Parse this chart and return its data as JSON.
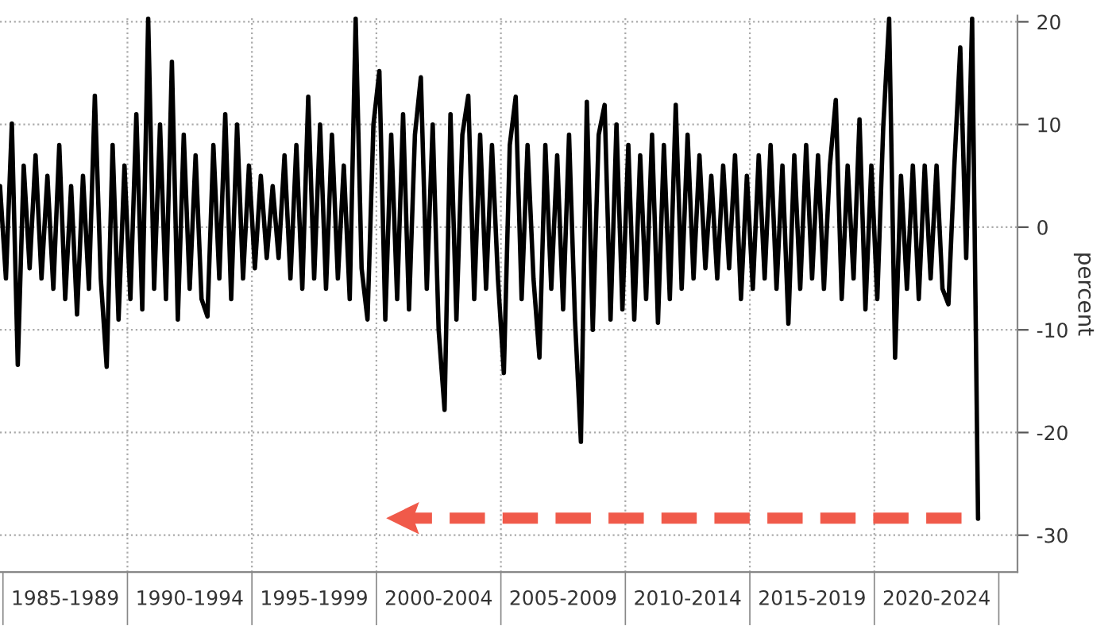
{
  "chart_data": {
    "type": "line",
    "ylabel": "percent",
    "categories": [
      null,
      null,
      null,
      null,
      null,
      null,
      null,
      null,
      null,
      null,
      null,
      "1985-1989",
      null,
      null,
      null,
      null,
      null,
      null,
      null,
      null,
      null,
      null,
      null,
      null,
      null,
      null,
      null,
      null,
      null,
      null,
      null,
      null,
      "1990-1994",
      null,
      null,
      null,
      null,
      null,
      null,
      null,
      null,
      null,
      null,
      null,
      null,
      null,
      null,
      null,
      null,
      null,
      null,
      null,
      null,
      "1995-1999",
      null,
      null,
      null,
      null,
      null,
      null,
      null,
      null,
      null,
      null,
      null,
      null,
      null,
      null,
      null,
      null,
      null,
      null,
      null,
      null,
      "2000-2004",
      null,
      null,
      null,
      null,
      null,
      null,
      null,
      null,
      null,
      null,
      null,
      null,
      null,
      null,
      null,
      null,
      null,
      null,
      null,
      null,
      "2005-2009",
      null,
      null,
      null,
      null,
      null,
      null,
      null,
      null,
      null,
      null,
      null,
      null,
      null,
      null,
      null,
      null,
      null,
      null,
      null,
      null,
      "2010-2014",
      null,
      null,
      null,
      null,
      null,
      null,
      null,
      null,
      null,
      null,
      null,
      null,
      null,
      null,
      null,
      null,
      null,
      null,
      null,
      null,
      "2015-2019",
      null,
      null,
      null,
      null,
      null,
      null,
      null,
      null,
      null,
      null,
      null,
      null,
      null,
      null,
      null,
      null,
      null,
      null,
      null,
      null,
      "2020-2024",
      null,
      null,
      null,
      null,
      null,
      null,
      null
    ],
    "series": [
      {
        "color": "#000000",
        "values": [
          4,
          -5,
          10.1,
          -13.4,
          6,
          -4,
          7,
          -5,
          5,
          -6,
          8,
          -7,
          4,
          -8.5,
          5,
          -6,
          12.8,
          -5,
          -13.6,
          8,
          -9,
          6,
          -7,
          11,
          -8,
          20.3,
          -6,
          10,
          -7,
          16.1,
          -9,
          9,
          -6,
          7,
          -7,
          -8.7,
          8,
          -5,
          11,
          -7,
          10,
          -5,
          6,
          -4,
          5,
          -3,
          4,
          -3,
          7,
          -5,
          8,
          -6,
          12.7,
          -5,
          10,
          -6,
          9,
          -5,
          6,
          -7,
          20.3,
          -4,
          -9,
          10,
          15.2,
          -9,
          9,
          -7,
          11,
          -8,
          9,
          14.6,
          -6,
          10,
          -10,
          -17.8,
          11,
          -9,
          9,
          12.8,
          -7,
          9,
          -6,
          8,
          -5,
          -14.2,
          8,
          12.7,
          -7,
          8,
          -5,
          -12.7,
          8,
          -6,
          7,
          -8,
          9,
          -9,
          -20.9,
          12.2,
          -10,
          9,
          11.9,
          -9,
          10,
          -8,
          8,
          -9,
          7,
          -7,
          9,
          -9.3,
          8,
          -7,
          11.9,
          -6,
          9,
          -5,
          7,
          -4,
          5,
          -5,
          6,
          -4,
          7,
          -7,
          5,
          -6,
          7,
          -5,
          8,
          -6,
          6,
          -9.4,
          7,
          -6,
          8,
          -5,
          7,
          -6,
          6,
          12.4,
          -7,
          6,
          -5,
          10.5,
          -8,
          6,
          -7,
          9.7,
          20.3,
          -12.7,
          5,
          -6,
          6,
          -7,
          6,
          -5,
          6,
          -6,
          -7.5,
          6,
          17.5,
          -3,
          20.3,
          -28.4
        ]
      }
    ],
    "ylim": [
      -33.6,
      20.6
    ],
    "yticks": [
      20,
      10,
      0,
      -10,
      -20,
      -30
    ],
    "grid": true,
    "legend": false,
    "marker": "none",
    "line_style": "solid"
  }
}
